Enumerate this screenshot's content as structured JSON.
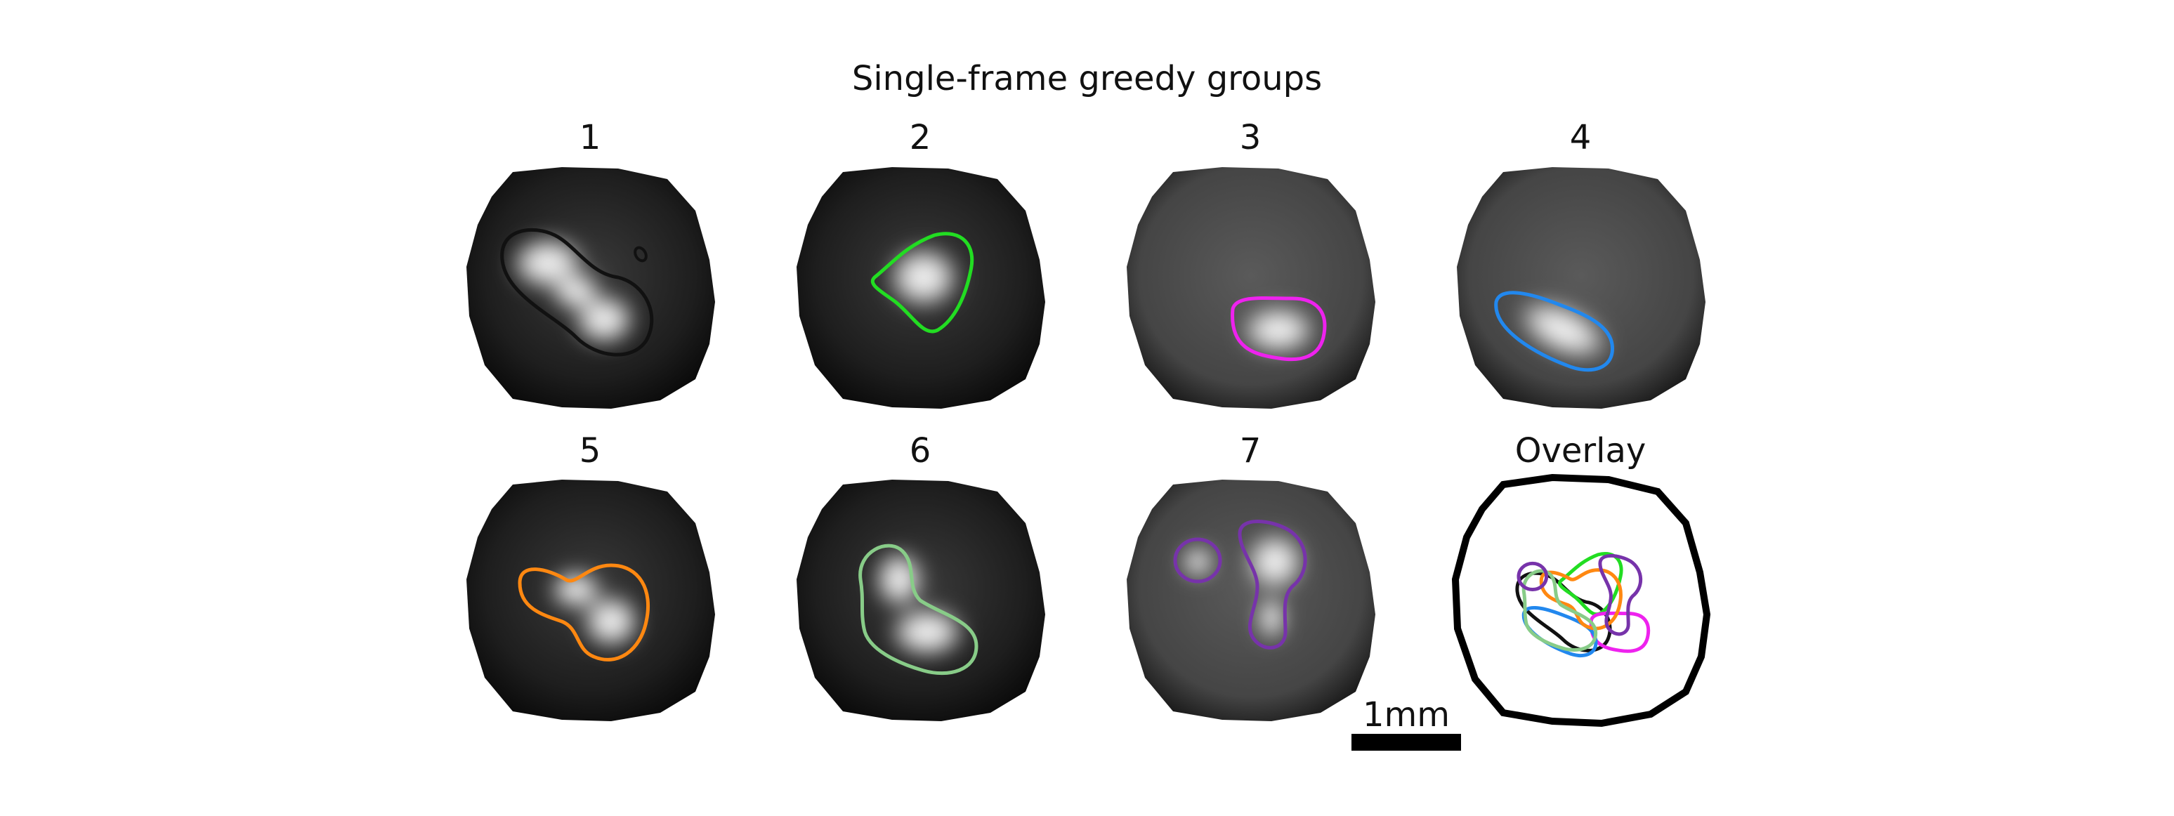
{
  "figure": {
    "title": "Single-frame greedy groups",
    "panels": [
      {
        "label": "1",
        "outline_color": "#111111",
        "background": "dark"
      },
      {
        "label": "2",
        "outline_color": "#22dd22",
        "background": "dark"
      },
      {
        "label": "3",
        "outline_color": "#ee22ee",
        "background": "gray"
      },
      {
        "label": "4",
        "outline_color": "#2288ee",
        "background": "gray"
      },
      {
        "label": "5",
        "outline_color": "#ff8811",
        "background": "dark"
      },
      {
        "label": "6",
        "outline_color": "#88cc88",
        "background": "dark"
      },
      {
        "label": "7",
        "outline_color": "#7733aa",
        "background": "gray"
      },
      {
        "label": "Overlay",
        "outline_color": "#000000",
        "background": "white"
      }
    ],
    "scale_bar": {
      "label": "1mm",
      "color": "#000000"
    }
  }
}
